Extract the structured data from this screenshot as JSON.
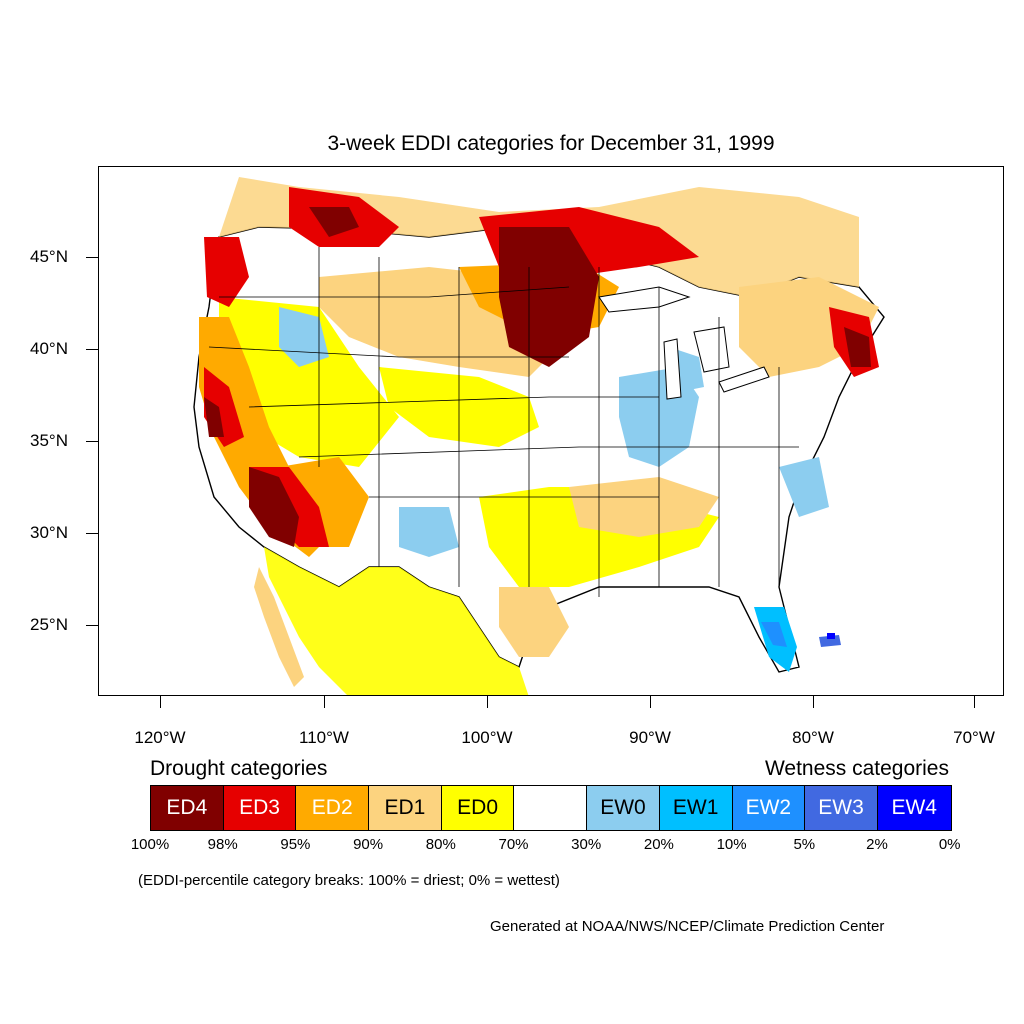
{
  "title": "3-week EDDI categories for December 31, 1999",
  "axes": {
    "lat_labels": [
      "45°N",
      "40°N",
      "35°N",
      "30°N",
      "25°N"
    ],
    "lon_labels": [
      "120°W",
      "110°W",
      "100°W",
      "90°W",
      "80°W",
      "70°W"
    ]
  },
  "legend": {
    "drought_heading": "Drought categories",
    "wetness_heading": "Wetness categories",
    "categories": [
      {
        "label": "ED4",
        "color": "#800000",
        "text_color": "#ffffff"
      },
      {
        "label": "ED3",
        "color": "#e60000",
        "text_color": "#ffffff"
      },
      {
        "label": "ED2",
        "color": "#ffaa00",
        "text_color": "#ffffff"
      },
      {
        "label": "ED1",
        "color": "#fcd37f",
        "text_color": "#000000"
      },
      {
        "label": "ED0",
        "color": "#ffff00",
        "text_color": "#000000"
      },
      {
        "label": "",
        "color": "#ffffff",
        "text_color": "#000000"
      },
      {
        "label": "EW0",
        "color": "#8ccdef",
        "text_color": "#000000"
      },
      {
        "label": "EW1",
        "color": "#00bfff",
        "text_color": "#000000"
      },
      {
        "label": "EW2",
        "color": "#1e90ff",
        "text_color": "#ffffff"
      },
      {
        "label": "EW3",
        "color": "#4169e1",
        "text_color": "#ffffff"
      },
      {
        "label": "EW4",
        "color": "#0000ff",
        "text_color": "#ffffff"
      }
    ],
    "percentiles": [
      "100%",
      "98%",
      "95%",
      "90%",
      "80%",
      "70%",
      "30%",
      "20%",
      "10%",
      "5%",
      "2%",
      "0%"
    ]
  },
  "note": "(EDDI-percentile category breaks: 100% = driest; 0% = wettest)",
  "credit": "Generated at NOAA/NWS/NCEP/Climate Prediction Center"
}
